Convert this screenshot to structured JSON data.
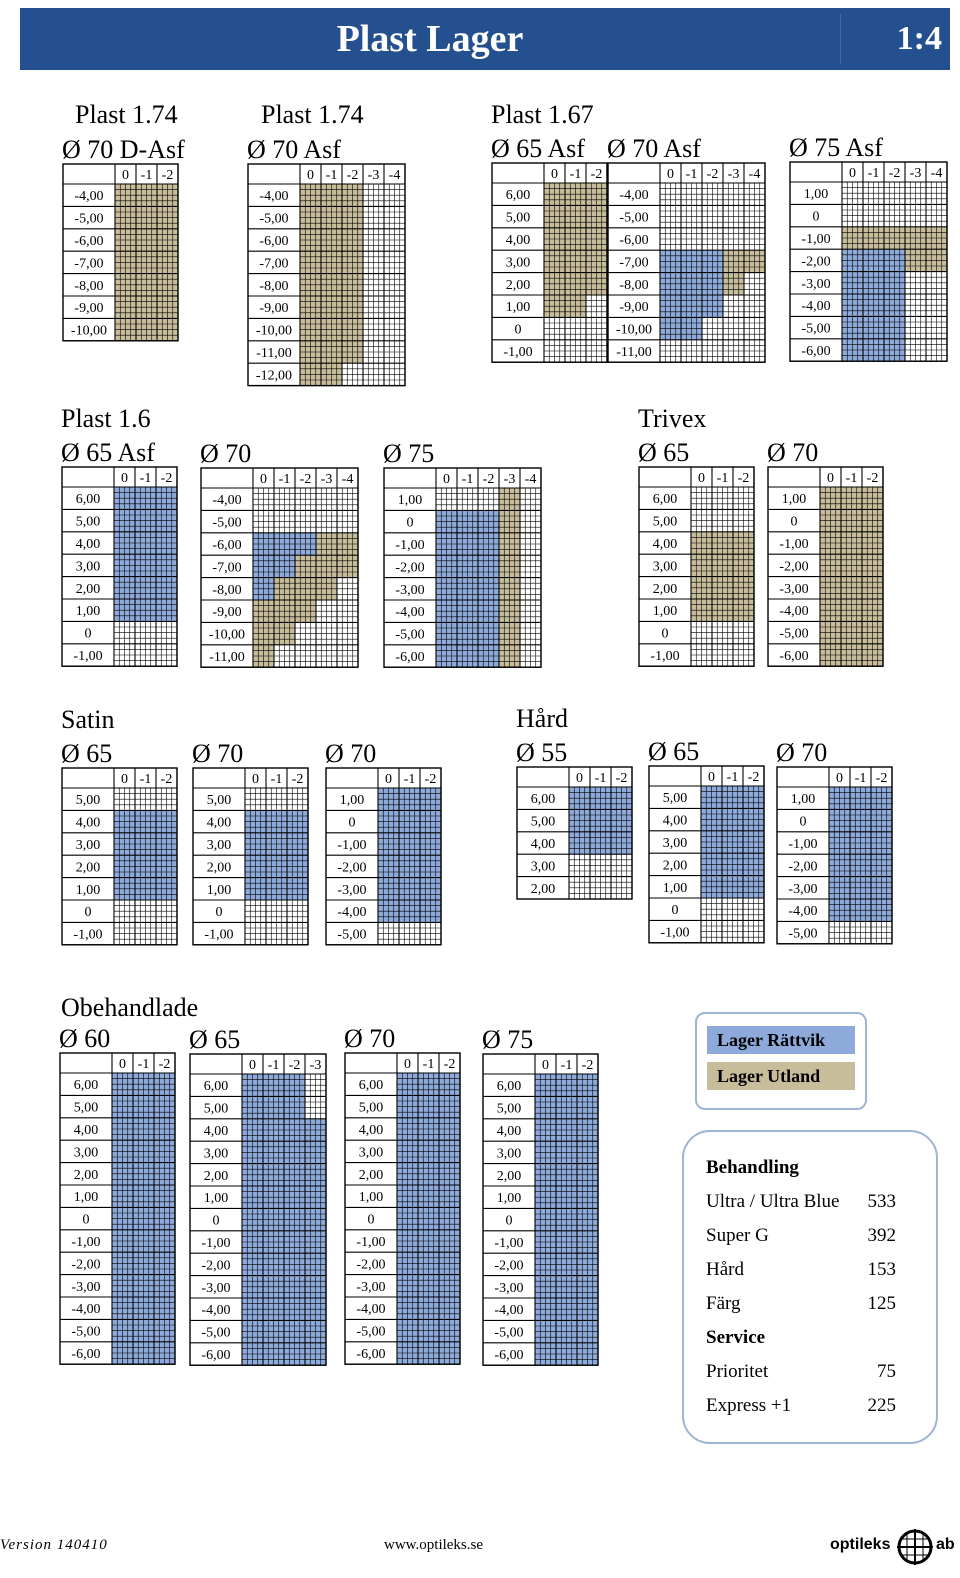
{
  "header": {
    "title": "Plast Lager",
    "scale": "1:4"
  },
  "colors": {
    "rattvik": "#8eaadb",
    "utland": "#c8bd9a",
    "header_bg": "#25508f"
  },
  "sections": [
    {
      "id": "plast174",
      "lines": [
        "Plast 1.74"
      ]
    },
    {
      "id": "plast174b",
      "lines": [
        "Plast 1.74"
      ]
    },
    {
      "id": "plast167",
      "lines": [
        "Plast 1.67"
      ]
    },
    {
      "id": "plast16",
      "lines": [
        "Plast 1.6"
      ]
    },
    {
      "id": "trivex",
      "lines": [
        "Trivex"
      ]
    },
    {
      "id": "satin",
      "lines": [
        "Satin"
      ]
    },
    {
      "id": "hard",
      "lines": [
        "Hård"
      ]
    },
    {
      "id": "obehandlade",
      "lines": [
        "Obehandlade"
      ]
    }
  ],
  "tables": [
    {
      "title": "Ø 70 D-Asf",
      "cyl": [
        "0",
        "-1",
        "-2"
      ],
      "sph": [
        "-4,00",
        "-5,00",
        "-6,00",
        "-7,00",
        "-8,00",
        "-9,00",
        "-10,00"
      ],
      "fill": "UUUUUUU|UUUUUUU|UUUUUUU"
    },
    {
      "title": "Ø 70 Asf",
      "cyl": [
        "0",
        "-1",
        "-2",
        "-3",
        "-4"
      ],
      "sph": [
        "-4,00",
        "-5,00",
        "-6,00",
        "-7,00",
        "-8,00",
        "-9,00",
        "-10,00",
        "-11,00",
        "-12,00"
      ],
      "fill": "UUUUUUUUU|UUUUUUUUU|UUUUUUUU.|.........|........."
    },
    {
      "title": "Ø 65 Asf",
      "cyl": [
        "0",
        "-1",
        "-2"
      ],
      "sph": [
        "6,00",
        "5,00",
        "4,00",
        "3,00",
        "2,00",
        "1,00",
        "0",
        "-1,00"
      ],
      "fill": "UUUUUU..|UUUUUU..|UUUUU..."
    },
    {
      "title": "Ø 70 Asf",
      "cyl": [
        "0",
        "-1",
        "-2",
        "-3",
        "-4"
      ],
      "sph": [
        "-4,00",
        "-5,00",
        "-6,00",
        "-7,00",
        "-8,00",
        "-9,00",
        "-10,00",
        "-11,00"
      ],
      "fill": "...RRRR.|...RRRR.|...RRR..|...UU...|...U...."
    },
    {
      "title": "Ø 75 Asf",
      "cyl": [
        "0",
        "-1",
        "-2",
        "-3",
        "-4"
      ],
      "sph": [
        "1,00",
        "0",
        "-1,00",
        "-2,00",
        "-3,00",
        "-4,00",
        "-5,00",
        "-6,00"
      ],
      "fill": "..URRRRR|..URRRRR|..URRRRR|..UU....|..UU...."
    },
    {
      "title": "Ø 65 Asf",
      "cyl": [
        "0",
        "-1",
        "-2"
      ],
      "sph": [
        "6,00",
        "5,00",
        "4,00",
        "3,00",
        "2,00",
        "1,00",
        "0",
        "-1,00"
      ],
      "fill": "RRRRRR..|RRRRRR..|RRRRRR.."
    },
    {
      "title": "Ø 70",
      "cyl": [
        "0",
        "-1",
        "-2",
        "-3",
        "-4"
      ],
      "sph": [
        "-4,00",
        "-5,00",
        "-6,00",
        "-7,00",
        "-8,00",
        "-9,00",
        "-10,00",
        "-11,00"
      ],
      "fill": "..RRRUUU|..RRUUU.|..RUUU..|..UUU...|..UU...."
    },
    {
      "title": "Ø 75",
      "cyl": [
        "0",
        "-1",
        "-2",
        "-3",
        "-4"
      ],
      "sph": [
        "1,00",
        "0",
        "-1,00",
        "-2,00",
        "-3,00",
        "-4,00",
        "-5,00",
        "-6,00"
      ],
      "fill": ".RRRRRRR|.RRRRRRR|.RRRRRRR|UUUUUUUU|........"
    },
    {
      "title": "Ø 65",
      "cyl": [
        "0",
        "-1",
        "-2"
      ],
      "sph": [
        "6,00",
        "5,00",
        "4,00",
        "3,00",
        "2,00",
        "1,00",
        "0",
        "-1,00"
      ],
      "fill": "..UUUU..|..UUUU..|..UUUU.."
    },
    {
      "title": "Ø 70",
      "cyl": [
        "0",
        "-1",
        "-2"
      ],
      "sph": [
        "1,00",
        "0",
        "-1,00",
        "-2,00",
        "-3,00",
        "-4,00",
        "-5,00",
        "-6,00"
      ],
      "fill": "UUUUUUUU|UUUUUUUU|UUUUUUUU"
    },
    {
      "title": "Ø 65",
      "cyl": [
        "0",
        "-1",
        "-2"
      ],
      "sph": [
        "5,00",
        "4,00",
        "3,00",
        "2,00",
        "1,00",
        "0",
        "-1,00"
      ],
      "fill": ".RRRR..|.RRRR..|.RRRR.."
    },
    {
      "title": "Ø 70",
      "cyl": [
        "0",
        "-1",
        "-2"
      ],
      "sph": [
        "5,00",
        "4,00",
        "3,00",
        "2,00",
        "1,00",
        "0",
        "-1,00"
      ],
      "fill": ".RRRR..|.RRRR..|.RRRR.."
    },
    {
      "title": "Ø 70",
      "cyl": [
        "0",
        "-1",
        "-2"
      ],
      "sph": [
        "1,00",
        "0",
        "-1,00",
        "-2,00",
        "-3,00",
        "-4,00",
        "-5,00"
      ],
      "fill": "RRRRRR.|RRRRRR.|RRRRRR."
    },
    {
      "title": "Ø 55",
      "cyl": [
        "0",
        "-1",
        "-2"
      ],
      "sph": [
        "6,00",
        "5,00",
        "4,00",
        "3,00",
        "2,00"
      ],
      "fill": "RRR..|RRR..|RRR.."
    },
    {
      "title": "Ø 65",
      "cyl": [
        "0",
        "-1",
        "-2"
      ],
      "sph": [
        "5,00",
        "4,00",
        "3,00",
        "2,00",
        "1,00",
        "0",
        "-1,00"
      ],
      "fill": "RRRRR..|RRRRR..|RRRRR.."
    },
    {
      "title": "Ø 70",
      "cyl": [
        "0",
        "-1",
        "-2"
      ],
      "sph": [
        "1,00",
        "0",
        "-1,00",
        "-2,00",
        "-3,00",
        "-4,00",
        "-5,00"
      ],
      "fill": "RRRRRR.|RRRRRR.|RRRRRR."
    },
    {
      "title": "Ø 60",
      "cyl": [
        "0",
        "-1",
        "-2"
      ],
      "sph": [
        "6,00",
        "5,00",
        "4,00",
        "3,00",
        "2,00",
        "1,00",
        "0",
        "-1,00",
        "-2,00",
        "-3,00",
        "-4,00",
        "-5,00",
        "-6,00"
      ],
      "fill": "RRRRRRRRRRRRR|RRRRRRRRRRRRR|RRRRRRRRRRRRR"
    },
    {
      "title": "Ø 65",
      "cyl": [
        "0",
        "-1",
        "-2",
        "-3"
      ],
      "sph": [
        "6,00",
        "5,00",
        "4,00",
        "3,00",
        "2,00",
        "1,00",
        "0",
        "-1,00",
        "-2,00",
        "-3,00",
        "-4,00",
        "-5,00",
        "-6,00"
      ],
      "fill": "RRRRRRRRRRRRR|RRRRRRRRRRRRR|RRRRRRRRRRRRR|..RRRRRRRRRRR"
    },
    {
      "title": "Ø 70",
      "cyl": [
        "0",
        "-1",
        "-2"
      ],
      "sph": [
        "6,00",
        "5,00",
        "4,00",
        "3,00",
        "2,00",
        "1,00",
        "0",
        "-1,00",
        "-2,00",
        "-3,00",
        "-4,00",
        "-5,00",
        "-6,00"
      ],
      "fill": "RRRRRRRRRRRRR|RRRRRRRRRRRRR|RRRRRRRRRRRRR"
    },
    {
      "title": "Ø 75",
      "cyl": [
        "0",
        "-1",
        "-2"
      ],
      "sph": [
        "6,00",
        "5,00",
        "4,00",
        "3,00",
        "2,00",
        "1,00",
        "0",
        "-1,00",
        "-2,00",
        "-3,00",
        "-4,00",
        "-5,00",
        "-6,00"
      ],
      "fill": "RRRRRRRRRRRRR|RRRRRRRRRRRRR|RRRRRRRRRRRRR"
    }
  ],
  "legend": {
    "rattvik": "Lager Rättvik",
    "utland": "Lager Utland"
  },
  "pricelist": [
    {
      "label": "Behandling",
      "value": "",
      "header": true
    },
    {
      "label": "Ultra / Ultra Blue",
      "value": "533"
    },
    {
      "label": "Super G",
      "value": "392"
    },
    {
      "label": "Hård",
      "value": "153"
    },
    {
      "label": "Färg",
      "value": "125"
    },
    {
      "label": "Service",
      "value": "",
      "header": true
    },
    {
      "label": "Prioritet",
      "value": "75"
    },
    {
      "label": "Express +1",
      "value": "225"
    }
  ],
  "footer": {
    "version": "Version 140410",
    "url": "www.optileks.se",
    "logo_left": "optileks",
    "logo_right": "ab"
  }
}
